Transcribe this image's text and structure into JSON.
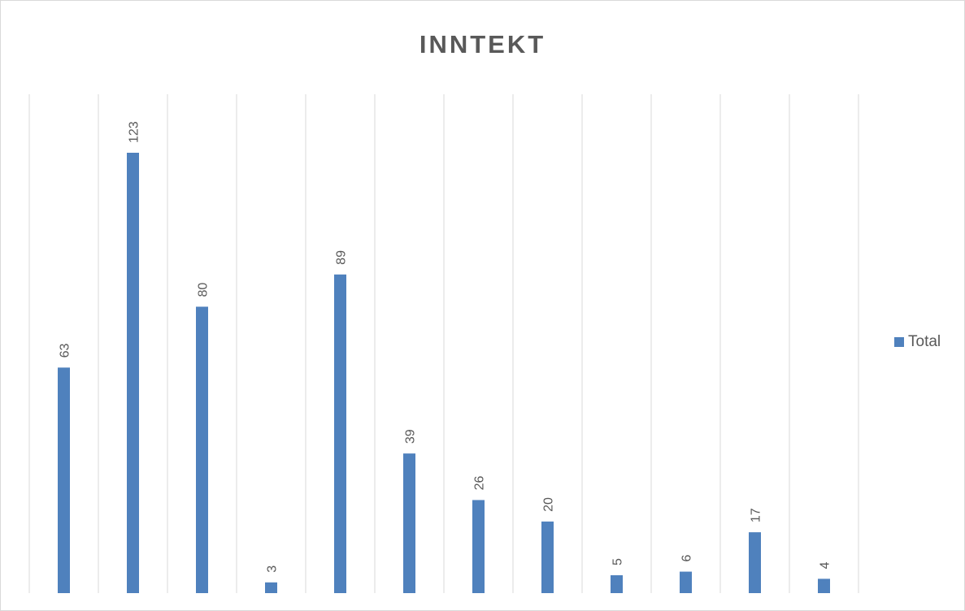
{
  "chart_data": {
    "type": "bar",
    "title": "INNTEKT",
    "xlabel": "",
    "ylabel": "",
    "categories": [
      "",
      "",
      "",
      "",
      "",
      "",
      "",
      "",
      "",
      "",
      "",
      ""
    ],
    "series": [
      {
        "name": "Total",
        "values": [
          63,
          123,
          80,
          3,
          89,
          39,
          26,
          20,
          5,
          6,
          17,
          4
        ]
      }
    ],
    "ylim": [
      0,
      130
    ],
    "grid": "vertical",
    "legend_position": "right",
    "data_labels": true,
    "colors": {
      "bar": "#4f81bd",
      "grid": "#d9d9d9",
      "text": "#595959"
    }
  }
}
